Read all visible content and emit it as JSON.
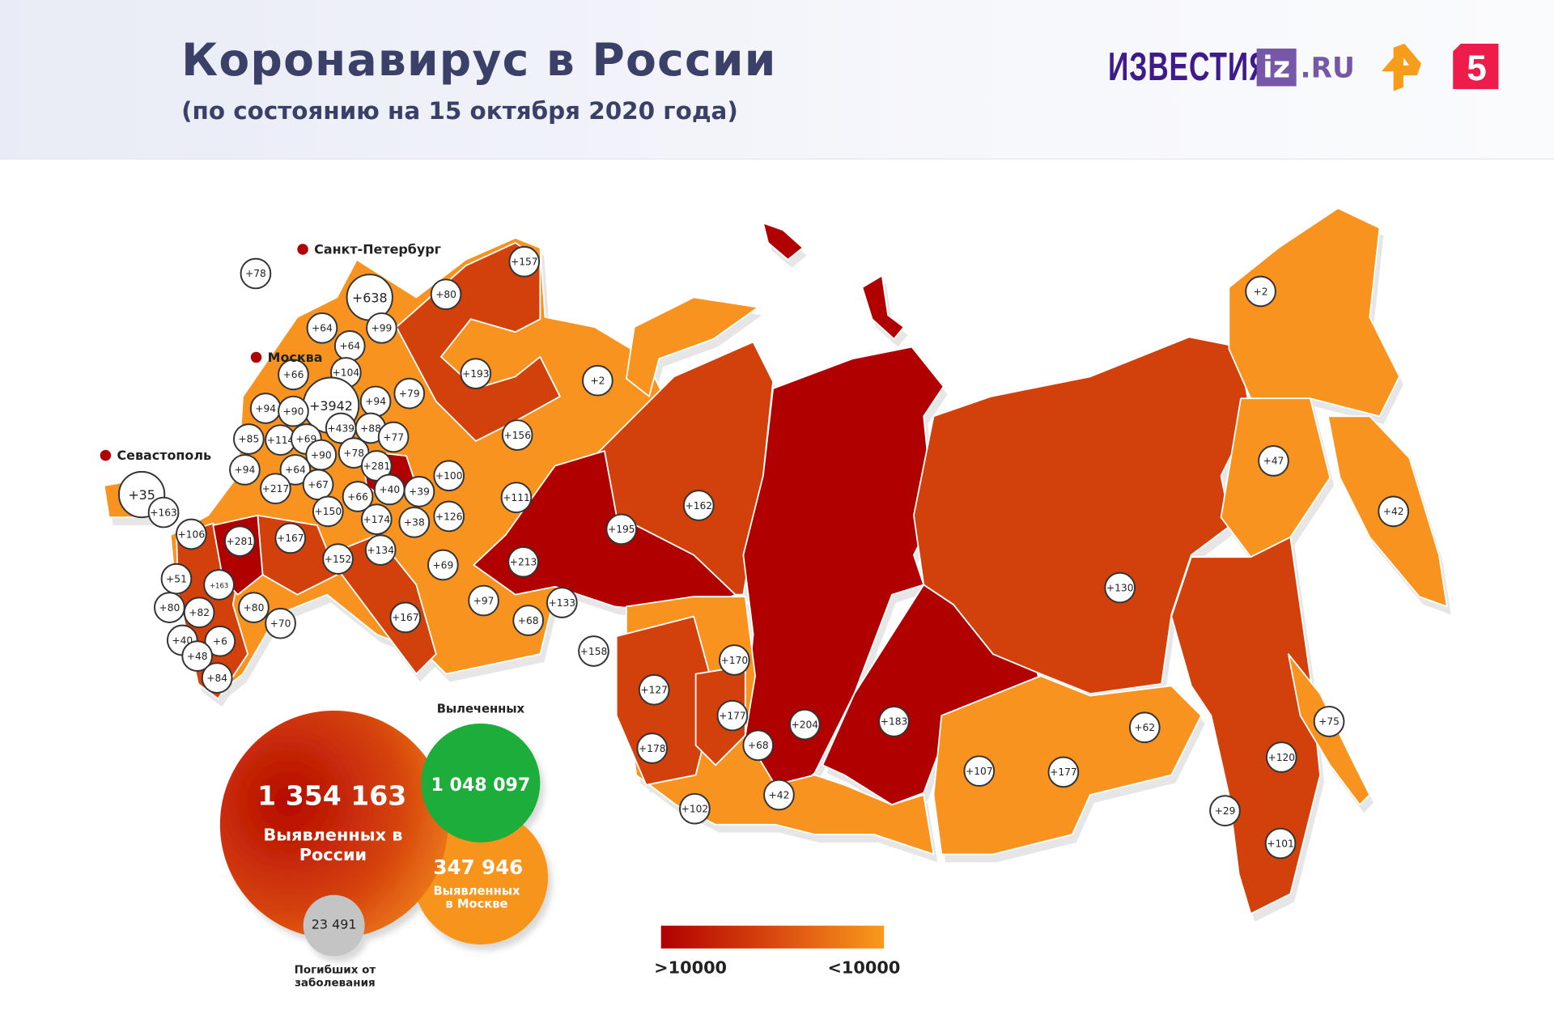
{
  "header": {
    "title": "Коронавирус в России",
    "subtitle": "(по состоянию на 15 октября 2020 года)"
  },
  "logos": {
    "izvestia": "ИЗВЕСТИЯ",
    "iz": "iz",
    ".ru": ".RU",
    "ren_tv": "REN TV logo",
    "channel5": "5"
  },
  "colors": {
    "high": "#b00000",
    "mid": "#d2400c",
    "low": "#f7931e",
    "recovered": "#1aad3a",
    "deaths": "#c4c4c4"
  },
  "cities": {
    "spb": "Санкт-Петербург",
    "moscow": "Москва",
    "sevastopol": "Севастополь"
  },
  "stats": {
    "russia_total": "1 354 163",
    "russia_label": "Выявленных в России",
    "recovered_title": "Вылеченных",
    "recovered": "1 048 097",
    "moscow_total": "347 946",
    "moscow_label": "Выявленных в Москве",
    "deaths": "23 491",
    "deaths_label": "Погибших от заболевания"
  },
  "legend": {
    "high": ">10000",
    "low": "<10000"
  },
  "new_cases": [
    "+78",
    "+638",
    "+99",
    "+64",
    "+64",
    "+80",
    "+157",
    "+66",
    "+104",
    "+3942",
    "+94",
    "+90",
    "+94",
    "+79",
    "+193",
    "+439",
    "+88",
    "+77",
    "+85",
    "+114",
    "+69",
    "+90",
    "+78",
    "+281",
    "+94",
    "+64",
    "+67",
    "+217",
    "+66",
    "+40",
    "+39",
    "+100",
    "+150",
    "+174",
    "+38",
    "+126",
    "+111",
    "+156",
    "+2",
    "+35",
    "+163",
    "+106",
    "+281",
    "+167",
    "+152",
    "+134",
    "+69",
    "+213",
    "+195",
    "+162",
    "+51",
    "+163",
    "+80",
    "+82",
    "+80",
    "+70",
    "+40",
    "+6",
    "+48",
    "+84",
    "+167",
    "+97",
    "+68",
    "+133",
    "+158",
    "+170",
    "+127",
    "+177",
    "+178",
    "+68",
    "+204",
    "+183",
    "+42",
    "+102",
    "+107",
    "+177",
    "+62",
    "+130",
    "+47",
    "+42",
    "+2",
    "+75",
    "+120",
    "+29",
    "+101"
  ]
}
